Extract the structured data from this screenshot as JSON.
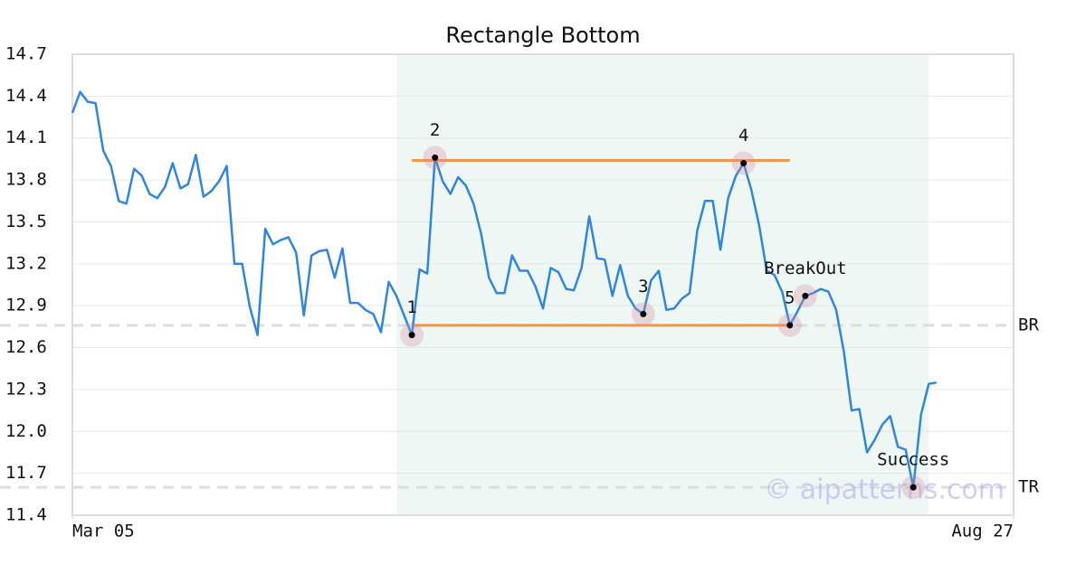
{
  "chart_data": {
    "type": "line",
    "title": "Rectangle Bottom",
    "xlim": [
      0,
      122
    ],
    "xticks": [
      {
        "value": 0,
        "label": "Mar 05"
      },
      {
        "value": 122,
        "label": "Aug 27"
      }
    ],
    "ylim": [
      11.4,
      14.7
    ],
    "yticks": [
      11.4,
      11.7,
      {
        "value": 12,
        "label": "12.0"
      },
      12.3,
      12.6,
      12.9,
      13.2,
      13.5,
      13.8,
      14.1,
      14.4,
      14.7
    ],
    "grid": true,
    "color": "#2e86de",
    "values": [
      14.28,
      14.43,
      14.36,
      14.35,
      14.01,
      13.9,
      13.65,
      13.63,
      13.88,
      13.83,
      13.7,
      13.67,
      13.75,
      13.92,
      13.74,
      13.77,
      13.98,
      13.68,
      13.72,
      13.79,
      13.9,
      13.2,
      13.2,
      12.89,
      12.69,
      13.45,
      13.34,
      13.37,
      13.39,
      13.28,
      12.83,
      13.26,
      13.29,
      13.3,
      13.1,
      13.31,
      12.92,
      12.92,
      12.87,
      12.84,
      12.71,
      13.07,
      12.97,
      12.83,
      12.69,
      13.16,
      13.13,
      13.96,
      13.79,
      13.7,
      13.82,
      13.76,
      13.63,
      13.41,
      13.1,
      12.99,
      12.99,
      13.26,
      13.15,
      13.15,
      13.04,
      12.88,
      13.17,
      13.14,
      13.02,
      13.01,
      13.17,
      13.54,
      13.24,
      13.23,
      12.97,
      13.19,
      12.97,
      12.88,
      12.84,
      13.08,
      13.15,
      12.87,
      12.88,
      12.95,
      12.99,
      13.44,
      13.65,
      13.65,
      13.3,
      13.67,
      13.83,
      13.92,
      13.73,
      13.48,
      13.15,
      13.12,
      13.0,
      12.76,
      12.86,
      12.97,
      12.99,
      13.02,
      13.0,
      12.87,
      12.57,
      12.15,
      12.16,
      11.85,
      11.94,
      12.05,
      12.11,
      11.89,
      11.87,
      11.6,
      12.12,
      12.34,
      12.35
    ],
    "shaded_x": [
      42,
      111
    ],
    "shade_color": "#eef7f3",
    "pattern_lines": [
      {
        "value": 13.94,
        "x": [
          44,
          93
        ],
        "color": "#f0974a"
      },
      {
        "value": 12.76,
        "x": [
          44,
          93
        ],
        "color": "#f0974a"
      }
    ],
    "reference_lines": [
      {
        "label": "BR",
        "value": 12.76
      },
      {
        "label": "TR",
        "value": 11.6
      }
    ],
    "points": [
      {
        "x": 44,
        "y": 12.69,
        "label": "1"
      },
      {
        "x": 47,
        "y": 13.96,
        "label": "2"
      },
      {
        "x": 74,
        "y": 12.84,
        "label": "3"
      },
      {
        "x": 87,
        "y": 13.92,
        "label": "4"
      },
      {
        "x": 93,
        "y": 12.76,
        "label": "5"
      },
      {
        "x": 95,
        "y": 12.97,
        "label": "BreakOut"
      },
      {
        "x": 109,
        "y": 11.6,
        "label": "Success"
      }
    ],
    "watermark": "© aipatterns.com"
  }
}
